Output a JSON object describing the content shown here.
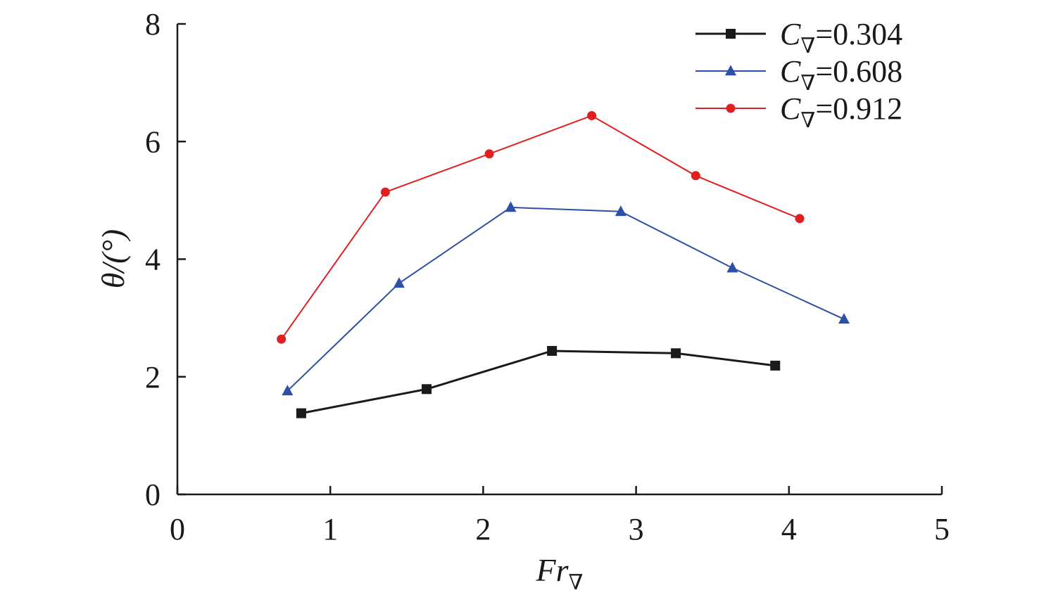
{
  "chart_data": {
    "type": "line",
    "xlabel": {
      "main": "Fr",
      "sub": "∇"
    },
    "ylabel": "θ/(°)",
    "xlim": [
      0,
      5
    ],
    "ylim": [
      0,
      8
    ],
    "x_ticks": [
      "0",
      "1",
      "2",
      "3",
      "4",
      "5"
    ],
    "y_ticks": [
      "0",
      "2",
      "4",
      "6",
      "8"
    ],
    "grid": false,
    "legend_position": "top-right",
    "series": [
      {
        "label": {
          "prefix": "C",
          "sub": "∇",
          "suffix": "=0.304"
        },
        "color": "#1a1a1a",
        "marker": "square",
        "points": [
          {
            "x": 0.81,
            "y": 1.38
          },
          {
            "x": 1.63,
            "y": 1.79
          },
          {
            "x": 2.45,
            "y": 2.44
          },
          {
            "x": 3.26,
            "y": 2.4
          },
          {
            "x": 3.91,
            "y": 2.19
          }
        ]
      },
      {
        "label": {
          "prefix": "C",
          "sub": "∇",
          "suffix": "=0.608"
        },
        "color": "#2e4fa8",
        "marker": "triangle",
        "points": [
          {
            "x": 0.72,
            "y": 1.76
          },
          {
            "x": 1.45,
            "y": 3.59
          },
          {
            "x": 2.18,
            "y": 4.88
          },
          {
            "x": 2.9,
            "y": 4.81
          },
          {
            "x": 3.63,
            "y": 3.85
          },
          {
            "x": 4.36,
            "y": 2.98
          }
        ]
      },
      {
        "label": {
          "prefix": "C",
          "sub": "∇",
          "suffix": "=0.912"
        },
        "color": "#e02020",
        "marker": "circle",
        "points": [
          {
            "x": 0.68,
            "y": 2.64
          },
          {
            "x": 1.36,
            "y": 5.14
          },
          {
            "x": 2.04,
            "y": 5.79
          },
          {
            "x": 2.71,
            "y": 6.44
          },
          {
            "x": 3.39,
            "y": 5.42
          },
          {
            "x": 4.07,
            "y": 4.69
          }
        ]
      }
    ]
  }
}
